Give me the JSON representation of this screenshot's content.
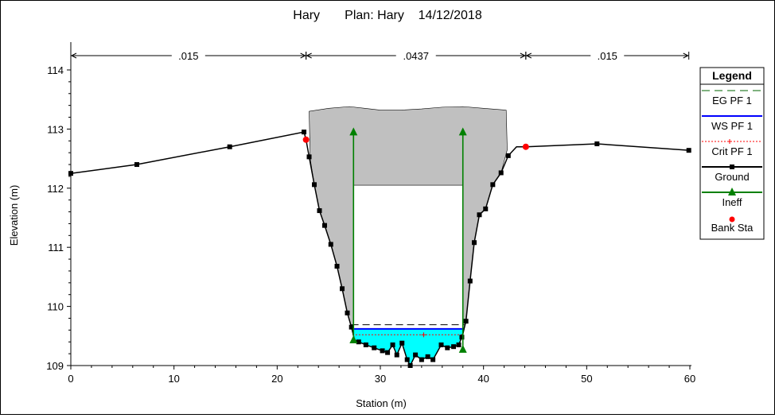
{
  "chart_data": {
    "type": "line",
    "title": "Hary       Plan: Hary    14/12/2018",
    "xlabel": "Station (m)",
    "ylabel": "Elevation (m)",
    "xlim": [
      0,
      60
    ],
    "ylim": [
      109,
      114.3
    ],
    "x_ticks": [
      "0",
      "10",
      "20",
      "30",
      "40",
      "50",
      "60"
    ],
    "y_ticks": [
      "109",
      "110",
      "111",
      "112",
      "113",
      "114"
    ],
    "mannings_n": [
      {
        "label": ".015",
        "from": 0,
        "to": 22.8
      },
      {
        "label": ".0437",
        "from": 22.8,
        "to": 44.1
      },
      {
        "label": ".015",
        "from": 44.1,
        "to": 59.9
      }
    ],
    "ground": {
      "x": [
        0,
        6.4,
        15.4,
        22.6,
        22.8,
        23.1,
        23.6,
        24.1,
        24.6,
        25.2,
        25.8,
        26.3,
        26.8,
        27.2,
        27.5,
        27.9,
        28.6,
        29.4,
        30.2,
        30.7,
        31.2,
        31.6,
        32.1,
        32.6,
        32.9,
        33.4,
        34.0,
        34.6,
        35.1,
        35.9,
        36.5,
        37.1,
        37.6,
        37.9,
        38.3,
        38.7,
        39.1,
        39.6,
        40.2,
        40.9,
        41.7,
        42.4,
        43.2,
        44.1,
        51.0,
        59.9
      ],
      "y": [
        112.25,
        112.4,
        112.7,
        112.95,
        112.82,
        112.53,
        112.06,
        111.62,
        111.37,
        111.05,
        110.68,
        110.3,
        109.89,
        109.65,
        109.43,
        109.4,
        109.35,
        109.3,
        109.25,
        109.22,
        109.35,
        109.18,
        109.38,
        109.1,
        109.0,
        109.18,
        109.1,
        109.15,
        109.1,
        109.35,
        109.3,
        109.32,
        109.35,
        109.48,
        109.75,
        110.43,
        111.08,
        111.55,
        111.65,
        112.06,
        112.26,
        112.55,
        112.7,
        112.7,
        112.75,
        112.64
      ]
    },
    "ground_markers_x": [
      0,
      6.4,
      15.4,
      22.6,
      23.1,
      23.6,
      24.1,
      24.6,
      25.2,
      25.8,
      26.3,
      26.8,
      27.2,
      27.9,
      28.6,
      29.4,
      30.2,
      30.7,
      31.2,
      31.6,
      32.1,
      32.6,
      32.9,
      33.4,
      34.0,
      34.6,
      35.1,
      35.9,
      36.5,
      37.1,
      37.6,
      37.9,
      38.3,
      38.7,
      39.1,
      39.6,
      40.2,
      40.9,
      41.7,
      42.4,
      51.0,
      59.9
    ],
    "ineffective_area": {
      "polygon": [
        [
          23.1,
          113.3
        ],
        [
          25.0,
          113.35
        ],
        [
          27.0,
          113.38
        ],
        [
          28.5,
          113.35
        ],
        [
          30.0,
          113.32
        ],
        [
          32.0,
          113.32
        ],
        [
          34.0,
          113.34
        ],
        [
          36.0,
          113.37
        ],
        [
          38.0,
          113.38
        ],
        [
          40.0,
          113.35
        ],
        [
          42.2,
          113.32
        ],
        [
          42.3,
          112.65
        ],
        [
          41.7,
          112.26
        ],
        [
          40.9,
          112.06
        ],
        [
          40.2,
          111.65
        ],
        [
          39.6,
          111.55
        ],
        [
          39.1,
          111.08
        ],
        [
          38.7,
          110.43
        ],
        [
          38.3,
          109.75
        ],
        [
          38.0,
          109.5
        ],
        [
          38.0,
          112.05
        ],
        [
          27.4,
          112.05
        ],
        [
          27.4,
          109.5
        ],
        [
          27.2,
          109.65
        ],
        [
          26.8,
          109.89
        ],
        [
          26.3,
          110.3
        ],
        [
          25.8,
          110.68
        ],
        [
          25.2,
          111.05
        ],
        [
          24.6,
          111.37
        ],
        [
          24.1,
          111.62
        ],
        [
          23.6,
          112.06
        ],
        [
          23.2,
          112.5
        ]
      ],
      "color": "#c0c0c0"
    },
    "water_surface_elevation": 109.62,
    "eg_elevation": 109.69,
    "crit_elevation": 109.52,
    "ineff": [
      {
        "x": 27.4,
        "y_top": 113.0,
        "y_bottom": 109.43
      },
      {
        "x": 38.0,
        "y_top": 113.0,
        "y_bottom": 109.27
      }
    ],
    "bank_stations": [
      {
        "x": 22.8,
        "y": 112.82
      },
      {
        "x": 44.1,
        "y": 112.7
      }
    ],
    "water_color": "#00ffff",
    "legend": {
      "title": "Legend",
      "position": "right",
      "items": [
        {
          "label": "EG PF 1",
          "style": "dashed",
          "color": "#006400"
        },
        {
          "label": "WS PF 1",
          "style": "solid",
          "color": "#0000ff"
        },
        {
          "label": "Crit PF 1",
          "style": "dotted-plus",
          "color": "#ff0000"
        },
        {
          "label": "Ground",
          "style": "line-square",
          "color": "#000000"
        },
        {
          "label": "Ineff",
          "style": "line-triangle",
          "color": "#008000"
        },
        {
          "label": "Bank Sta",
          "style": "dot",
          "color": "#ff0000"
        }
      ]
    }
  }
}
